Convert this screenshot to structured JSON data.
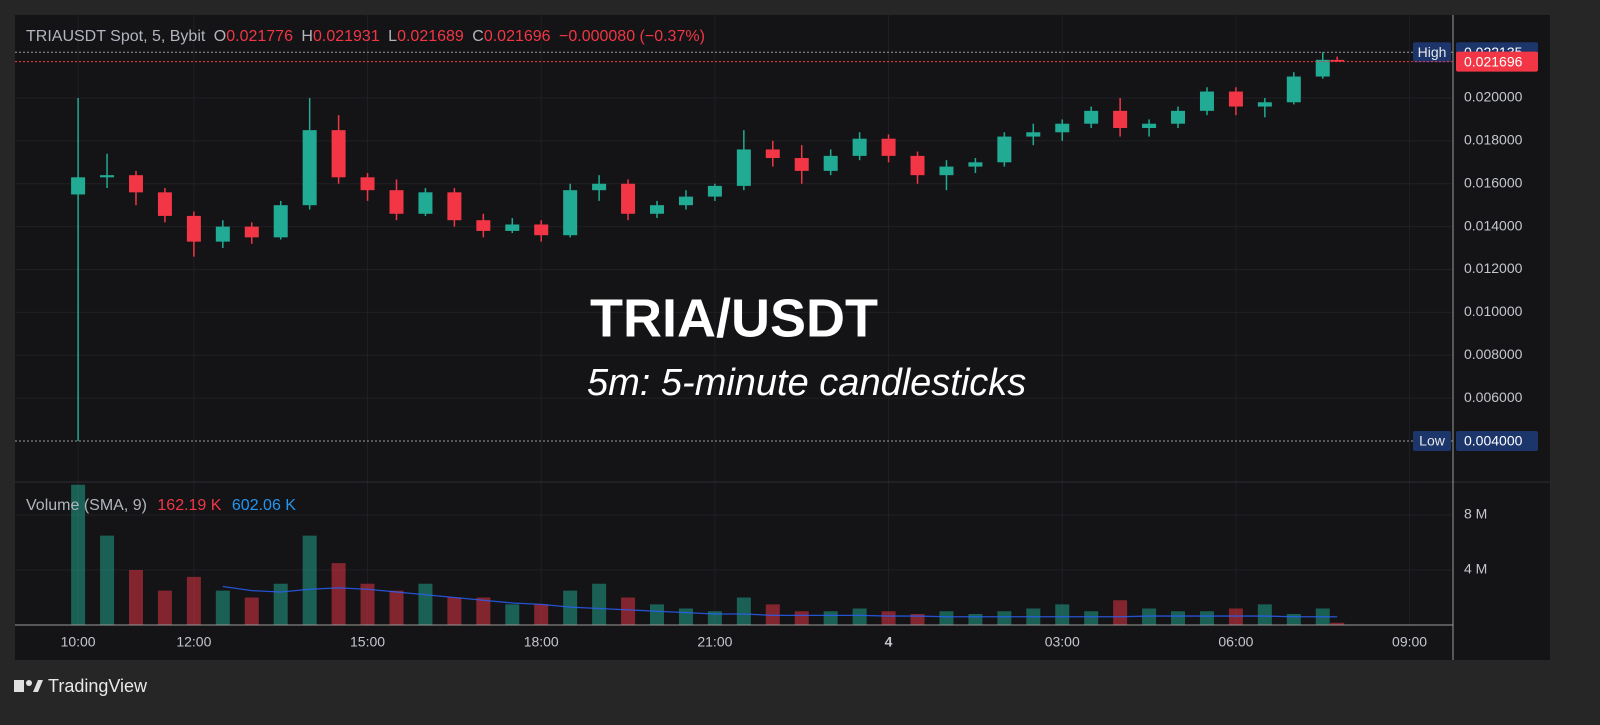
{
  "chart_data": {
    "type": "candlestick",
    "legend": {
      "symbol": "TRIAUSDT Spot, 5, Bybit",
      "o": "O",
      "h": "H",
      "l": "L",
      "c": "C",
      "change": "−0.000080 (−0.37%)"
    },
    "overlay_title": "TRIA/USDT",
    "overlay_subtitle": "5m: 5-minute candlesticks",
    "up_color": "#22ab94",
    "down_color": "#f23645",
    "x": [
      10,
      10.5,
      11,
      11.5,
      12,
      12.5,
      13,
      13.5,
      14,
      14.5,
      15,
      15.5,
      16,
      16.5,
      17,
      17.5,
      18,
      18.5,
      19,
      19.5,
      20,
      20.5,
      21,
      21.5,
      22,
      22.5,
      23,
      23.5,
      24,
      24.5,
      25,
      25.5,
      26,
      26.5,
      27,
      27.5,
      28,
      28.5,
      29,
      29.5,
      30,
      30.5,
      31,
      31.5,
      31.75
    ],
    "open": [
      0.0155,
      0.0163,
      0.0164,
      0.0156,
      0.0145,
      0.0133,
      0.014,
      0.0135,
      0.015,
      0.0185,
      0.0163,
      0.0157,
      0.0146,
      0.0156,
      0.0143,
      0.0138,
      0.0141,
      0.0136,
      0.0157,
      0.016,
      0.0146,
      0.015,
      0.0154,
      0.0159,
      0.0176,
      0.0172,
      0.0166,
      0.0173,
      0.0181,
      0.0173,
      0.0164,
      0.0168,
      0.017,
      0.0182,
      0.0184,
      0.0188,
      0.0194,
      0.0186,
      0.0188,
      0.0194,
      0.0203,
      0.0196,
      0.0198,
      0.021,
      0.021776
    ],
    "high": [
      0.02,
      0.0174,
      0.0166,
      0.0158,
      0.0147,
      0.0143,
      0.0142,
      0.0152,
      0.02,
      0.0192,
      0.0165,
      0.0162,
      0.0158,
      0.0158,
      0.0146,
      0.0144,
      0.0143,
      0.016,
      0.0164,
      0.0162,
      0.0152,
      0.0157,
      0.016,
      0.0185,
      0.018,
      0.0178,
      0.0176,
      0.0184,
      0.0183,
      0.0175,
      0.0171,
      0.0172,
      0.0184,
      0.0188,
      0.019,
      0.0196,
      0.02,
      0.019,
      0.0196,
      0.0205,
      0.0205,
      0.02,
      0.0212,
      0.022135,
      0.021931
    ],
    "low": [
      0.004,
      0.0158,
      0.015,
      0.0142,
      0.0126,
      0.013,
      0.0132,
      0.0134,
      0.0148,
      0.016,
      0.0152,
      0.0143,
      0.0145,
      0.014,
      0.0135,
      0.0137,
      0.0133,
      0.0135,
      0.0152,
      0.0143,
      0.0144,
      0.0148,
      0.0152,
      0.0157,
      0.0168,
      0.016,
      0.0164,
      0.0171,
      0.017,
      0.016,
      0.0157,
      0.0165,
      0.0168,
      0.0178,
      0.018,
      0.0186,
      0.0182,
      0.0182,
      0.0186,
      0.0192,
      0.0192,
      0.0191,
      0.0197,
      0.0209,
      0.021689
    ],
    "close": [
      0.0163,
      0.0164,
      0.0156,
      0.0145,
      0.0133,
      0.014,
      0.0135,
      0.015,
      0.0185,
      0.0163,
      0.0157,
      0.0146,
      0.0156,
      0.0143,
      0.0138,
      0.0141,
      0.0136,
      0.0157,
      0.016,
      0.0146,
      0.015,
      0.0154,
      0.0159,
      0.0176,
      0.0172,
      0.0166,
      0.0173,
      0.0181,
      0.0173,
      0.0164,
      0.0168,
      0.017,
      0.0182,
      0.0184,
      0.0188,
      0.0194,
      0.0186,
      0.0188,
      0.0194,
      0.0203,
      0.0196,
      0.0198,
      0.021,
      0.02178,
      0.021696
    ],
    "xlim": [
      8.91,
      33.75
    ],
    "xticks": [
      {
        "value": 10,
        "label": "10:00"
      },
      {
        "value": 12,
        "label": "12:00"
      },
      {
        "value": 15,
        "label": "15:00"
      },
      {
        "value": 18,
        "label": "18:00"
      },
      {
        "value": 21,
        "label": "21:00"
      },
      {
        "value": 24,
        "label": "4"
      },
      {
        "value": 27,
        "label": "03:00"
      },
      {
        "value": 30,
        "label": "06:00"
      },
      {
        "value": 33,
        "label": "09:00"
      }
    ],
    "ylim": [
      0.00209,
      0.02387
    ],
    "yticks": [
      {
        "value": 0.006,
        "label": "0.006000"
      },
      {
        "value": 0.008,
        "label": "0.008000"
      },
      {
        "value": 0.01,
        "label": "0.010000"
      },
      {
        "value": 0.012,
        "label": "0.012000"
      },
      {
        "value": 0.014,
        "label": "0.014000"
      },
      {
        "value": 0.016,
        "label": "0.016000"
      },
      {
        "value": 0.018,
        "label": "0.018000"
      },
      {
        "value": 0.02,
        "label": "0.020000"
      }
    ],
    "grid": true,
    "high_marker": {
      "name": "High",
      "value": 0.022135
    },
    "low_marker": {
      "name": "Low",
      "value": 0.004,
      "label": "0.004000"
    },
    "volume_legend": {
      "name": "Volume (SMA, 9)",
      "last": "162.19 K",
      "sma": "602.06 K"
    },
    "sma_color": "#2962ff",
    "volume": [
      10200000,
      6500000,
      4000000,
      2500000,
      3500000,
      2500000,
      2000000,
      3000000,
      6500000,
      4500000,
      3000000,
      2500000,
      3000000,
      2000000,
      2000000,
      1500000,
      1500000,
      2500000,
      3000000,
      2000000,
      1500000,
      1200000,
      1000000,
      2000000,
      1500000,
      1000000,
      1000000,
      1200000,
      1000000,
      800000,
      1000000,
      800000,
      1000000,
      1200000,
      1500000,
      1000000,
      1800000,
      1200000,
      1000000,
      1000000,
      1200000,
      1500000,
      800000,
      1200000,
      162190
    ],
    "volume_sma": [
      null,
      null,
      null,
      null,
      null,
      2800000,
      2500000,
      2400000,
      2600000,
      2700000,
      2600000,
      2400000,
      2200000,
      2000000,
      1800000,
      1600000,
      1500000,
      1300000,
      1200000,
      1100000,
      1000000,
      900000,
      800000,
      800000,
      700000,
      700000,
      700000,
      700000,
      650000,
      650000,
      600000,
      600000,
      600000,
      600000,
      600000,
      600000,
      600000,
      650000,
      650000,
      650000,
      650000,
      650000,
      600000,
      600000,
      602060
    ],
    "vlim": [
      0,
      10400000
    ],
    "vticks": [
      {
        "value": 4000000,
        "label": "4 M"
      },
      {
        "value": 8000000,
        "label": "8 M"
      }
    ]
  },
  "footer": {
    "brand": "TradingView"
  }
}
